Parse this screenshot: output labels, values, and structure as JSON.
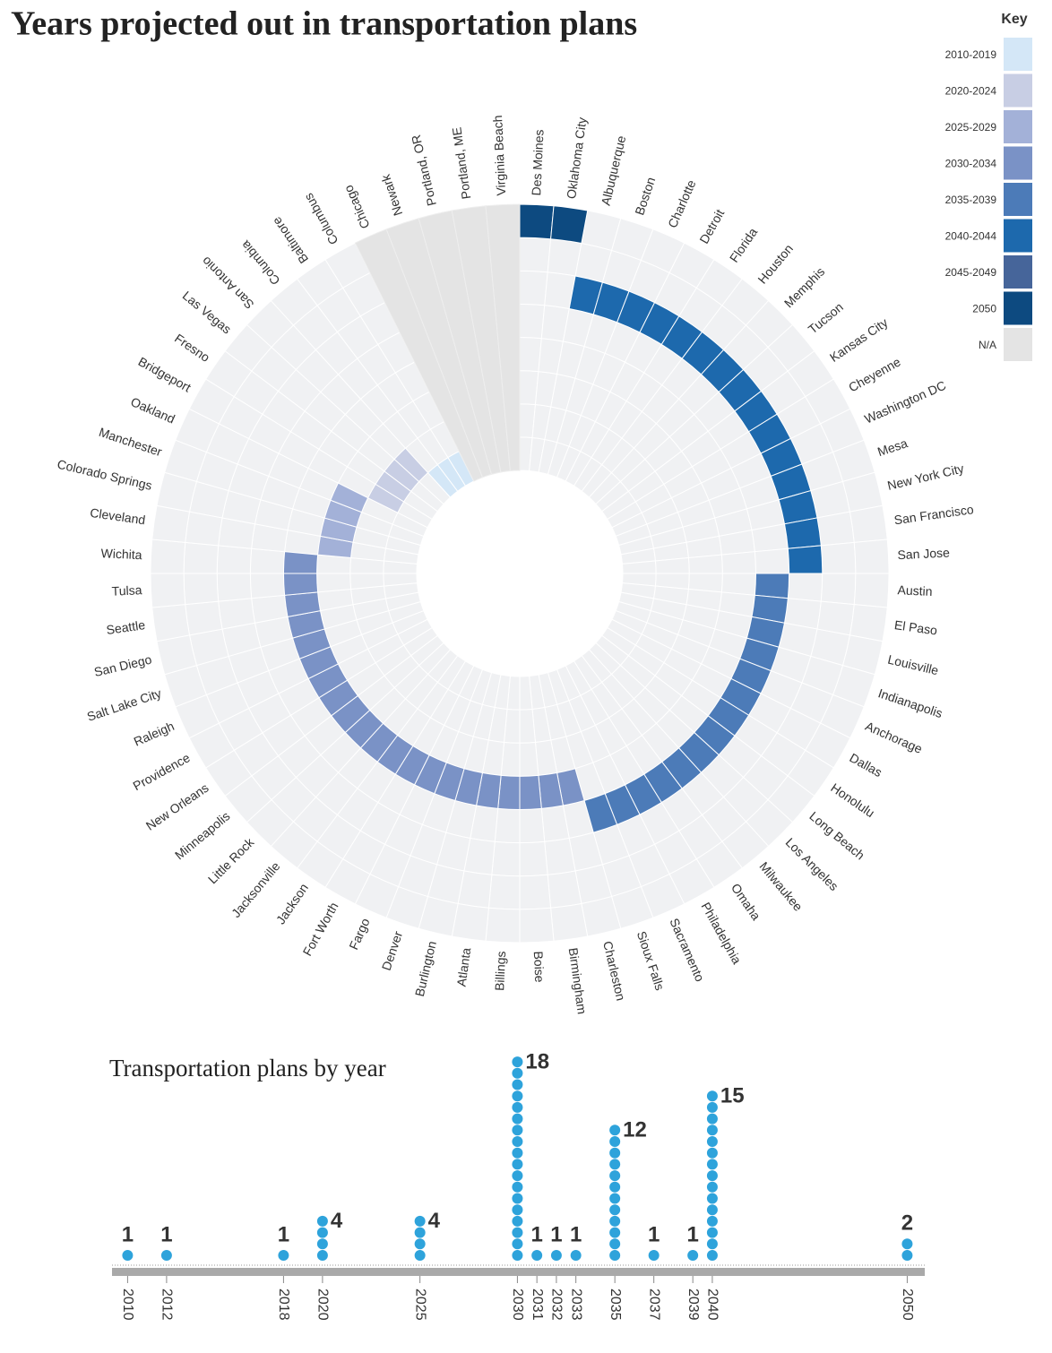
{
  "chart_data": [
    {
      "type": "radial",
      "title": "Years projected out in transportation plans",
      "key_title": "Key",
      "key": [
        {
          "label": "2010-2019",
          "color": "#d4e7f7"
        },
        {
          "label": "2020-2024",
          "color": "#c8cee4"
        },
        {
          "label": "2025-2029",
          "color": "#a3b1d8"
        },
        {
          "label": "2030-2034",
          "color": "#7a92c6"
        },
        {
          "label": "2035-2039",
          "color": "#4c7bb8"
        },
        {
          "label": "2040-2044",
          "color": "#1d69ad"
        },
        {
          "label": "2045-2049",
          "color": "#46659a"
        },
        {
          "label": "2050",
          "color": "#0d4a80"
        },
        {
          "label": "N/A",
          "color": "#e4e4e4"
        }
      ],
      "categories": [
        "Des Moines",
        "Oklahoma City",
        "Albuquerque",
        "Boston",
        "Charlotte",
        "Detroit",
        "Florida",
        "Houston",
        "Memphis",
        "Tucson",
        "Kansas City",
        "Cheyenne",
        "Washington DC",
        "Mesa",
        "New York City",
        "San Francisco",
        "San Jose",
        "Austin",
        "El Paso",
        "Louisville",
        "Indianapolis",
        "Anchorage",
        "Dallas",
        "Honolulu",
        "Long Beach",
        "Los Angeles",
        "Milwaukee",
        "Omaha",
        "Philadelphia",
        "Sacramento",
        "Sioux Falls",
        "Charleston",
        "Birmingham",
        "Boise",
        "Billings",
        "Atlanta",
        "Burlington",
        "Denver",
        "Fargo",
        "Fort Worth",
        "Jackson",
        "Jacksonville",
        "Little Rock",
        "Minneapolis",
        "New Orleans",
        "Providence",
        "Raleigh",
        "Salt Lake City",
        "San Diego",
        "Seattle",
        "Tulsa",
        "Wichita",
        "Cleveland",
        "Colorado Springs",
        "Manchester",
        "Oakland",
        "Bridgeport",
        "Fresno",
        "Las Vegas",
        "San Antonio",
        "Columbia",
        "Baltimore",
        "Columbus",
        "Chicago",
        "Newark",
        "Portland, OR",
        "Portland, ME",
        "Virginia Beach"
      ],
      "values": [
        "2050",
        "2050",
        "2040-2044",
        "2040-2044",
        "2040-2044",
        "2040-2044",
        "2040-2044",
        "2040-2044",
        "2040-2044",
        "2040-2044",
        "2040-2044",
        "2040-2044",
        "2040-2044",
        "2040-2044",
        "2040-2044",
        "2040-2044",
        "2040-2044",
        "2035-2039",
        "2035-2039",
        "2035-2039",
        "2035-2039",
        "2035-2039",
        "2035-2039",
        "2035-2039",
        "2035-2039",
        "2035-2039",
        "2035-2039",
        "2035-2039",
        "2035-2039",
        "2035-2039",
        "2035-2039",
        "2030-2034",
        "2030-2034",
        "2030-2034",
        "2030-2034",
        "2030-2034",
        "2030-2034",
        "2030-2034",
        "2030-2034",
        "2030-2034",
        "2030-2034",
        "2030-2034",
        "2030-2034",
        "2030-2034",
        "2030-2034",
        "2030-2034",
        "2030-2034",
        "2030-2034",
        "2030-2034",
        "2030-2034",
        "2030-2034",
        "2030-2034",
        "2025-2029",
        "2025-2029",
        "2025-2029",
        "2025-2029",
        "2020-2024",
        "2020-2024",
        "2020-2024",
        "2020-2024",
        "2010-2019",
        "2010-2019",
        "2010-2019",
        "N/A",
        "N/A",
        "N/A",
        "N/A",
        "N/A"
      ]
    },
    {
      "type": "dot",
      "title": "Transportation plans by year",
      "color": "#2ea3db",
      "x": [
        2010,
        2012,
        2018,
        2020,
        2025,
        2030,
        2031,
        2032,
        2033,
        2035,
        2037,
        2039,
        2040,
        2050
      ],
      "values": [
        1,
        1,
        1,
        4,
        4,
        18,
        1,
        1,
        1,
        12,
        1,
        1,
        15,
        2
      ],
      "xlim": [
        2009.2,
        2050.9
      ]
    }
  ]
}
